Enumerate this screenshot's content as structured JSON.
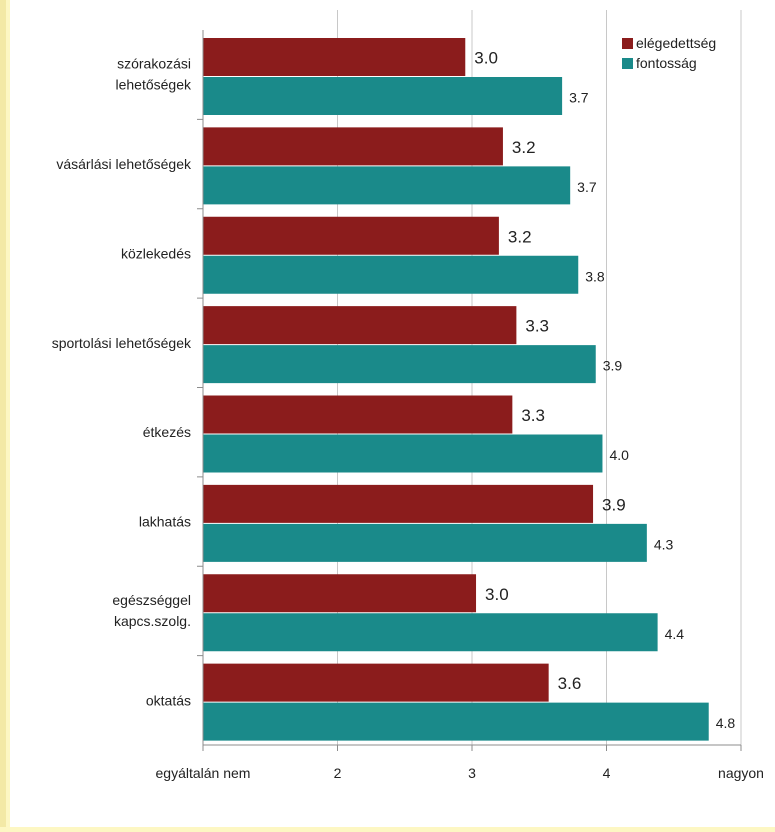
{
  "colors": {
    "page_background": "#fdf7c3",
    "series_satisfaction": "#8b1c1c",
    "series_importance": "#1a8a8a",
    "gridline": "#c8c8c8",
    "axis": "#8c8c8c",
    "text": "#222222"
  },
  "chart_data": {
    "type": "bar",
    "orientation": "horizontal",
    "categories": [
      "szórakozási lehetőségek",
      "vásárlási lehetőségek",
      "közlekedés",
      "sportolási lehetőségek",
      "étkezés",
      "lakhatás",
      "egészséggel kapcs.szolg.",
      "oktatás"
    ],
    "category_lines": [
      [
        "szórakozási",
        "lehetőségek"
      ],
      [
        "vásárlási lehetőségek"
      ],
      [
        "közlekedés"
      ],
      [
        "sportolási lehetőségek"
      ],
      [
        "étkezés"
      ],
      [
        "lakhatás"
      ],
      [
        "egészséggel",
        "kapcs.szolg."
      ],
      [
        "oktatás"
      ]
    ],
    "series": [
      {
        "name": "elégedettség",
        "color": "#8b1c1c",
        "values": [
          2.95,
          3.23,
          3.2,
          3.33,
          3.3,
          3.9,
          3.03,
          3.57
        ],
        "labels": [
          "3.0",
          "3.2",
          "3.2",
          "3.3",
          "3.3",
          "3.9",
          "3.0",
          "3.6"
        ]
      },
      {
        "name": "fontosság",
        "color": "#1a8a8a",
        "values": [
          3.67,
          3.73,
          3.79,
          3.92,
          3.97,
          4.3,
          4.38,
          4.76
        ],
        "labels": [
          "3.7",
          "3.7",
          "3.8",
          "3.9",
          "4.0",
          "4.3",
          "4.4",
          "4.8"
        ]
      }
    ],
    "xlim": [
      1,
      5
    ],
    "x_ticks": [
      {
        "value": 1,
        "label": "egyáltalán nem"
      },
      {
        "value": 2,
        "label": "2"
      },
      {
        "value": 3,
        "label": "3"
      },
      {
        "value": 4,
        "label": "4"
      },
      {
        "value": 5,
        "label": "nagyon"
      }
    ],
    "grid": true,
    "legend_position": "top-right",
    "title": "",
    "xlabel": "",
    "ylabel": ""
  }
}
